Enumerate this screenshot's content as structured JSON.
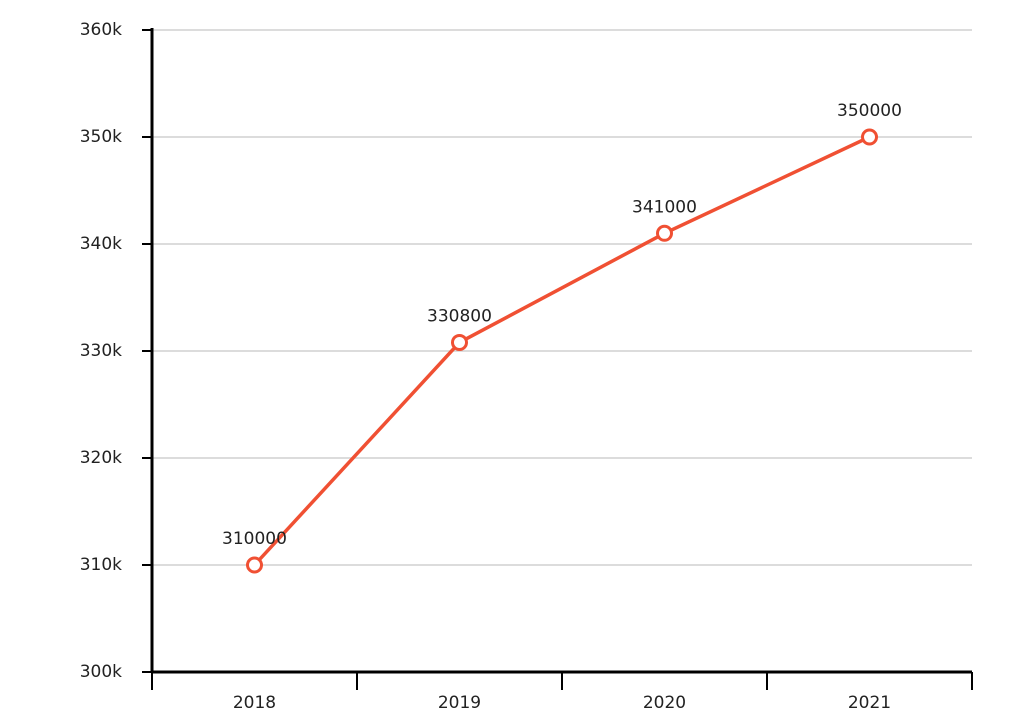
{
  "chart_data": {
    "type": "line",
    "categories": [
      "2018",
      "2019",
      "2020",
      "2021"
    ],
    "values": [
      310000,
      330800,
      341000,
      350000
    ],
    "color": "#f05033",
    "ylim": [
      300000,
      360000
    ],
    "yticks": [
      {
        "value": 300000,
        "label": "300k"
      },
      {
        "value": 310000,
        "label": "310k"
      },
      {
        "value": 320000,
        "label": "320k"
      },
      {
        "value": 330000,
        "label": "330k"
      },
      {
        "value": 340000,
        "label": "340k"
      },
      {
        "value": 350000,
        "label": "350k"
      },
      {
        "value": 360000,
        "label": "360k"
      }
    ],
    "grid": true
  }
}
